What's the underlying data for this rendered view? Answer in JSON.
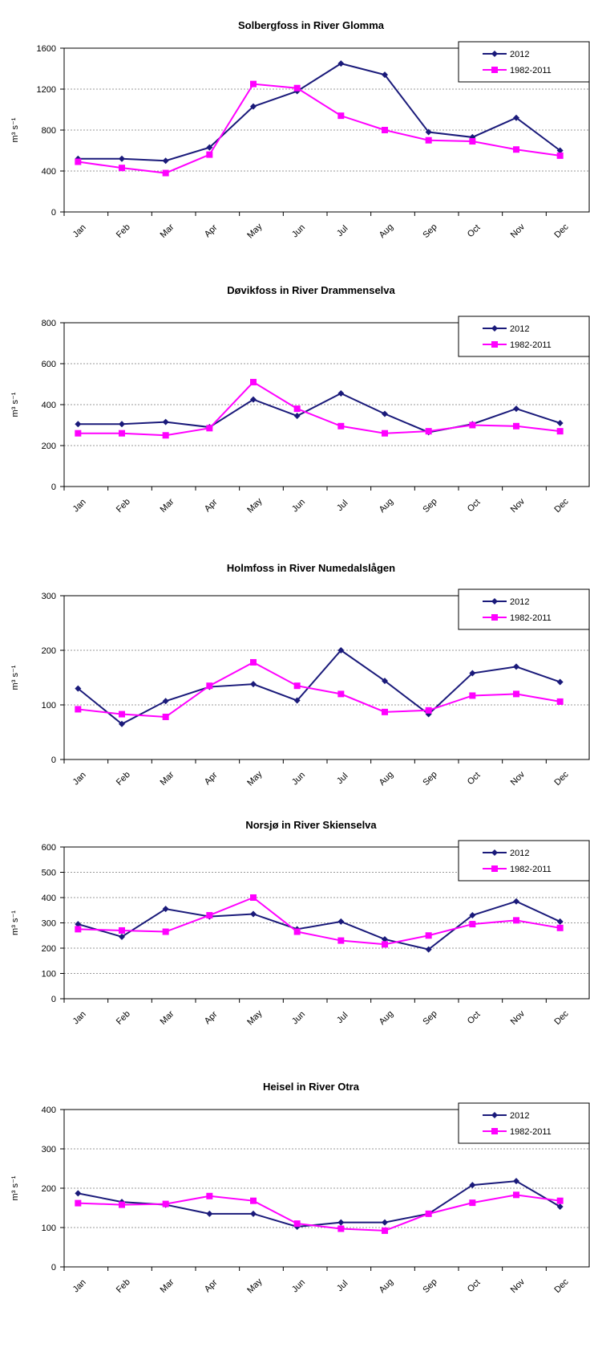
{
  "chart_data": [
    {
      "type": "line",
      "title": "Solbergfoss in River Glomma",
      "ylabel": "m³ s⁻¹",
      "categories": [
        "Jan",
        "Feb",
        "Mar",
        "Apr",
        "May",
        "Jun",
        "Jul",
        "Aug",
        "Sep",
        "Oct",
        "Nov",
        "Dec"
      ],
      "ylim": [
        0,
        1600
      ],
      "yticks": [
        0,
        400,
        800,
        1200,
        1600
      ],
      "legend_position": "top-right",
      "grid": true,
      "series": [
        {
          "name": "2012",
          "color": "#1a1a7a",
          "marker": "diamond",
          "values": [
            520,
            520,
            500,
            630,
            1030,
            1180,
            1450,
            1340,
            780,
            730,
            920,
            600
          ]
        },
        {
          "name": "1982-2011",
          "color": "#ff00ff",
          "marker": "square",
          "values": [
            490,
            430,
            380,
            560,
            1250,
            1210,
            940,
            800,
            700,
            690,
            610,
            550
          ]
        }
      ]
    },
    {
      "type": "line",
      "title": "Døvikfoss in River Drammenselva",
      "ylabel": "m³ s⁻¹",
      "categories": [
        "Jan",
        "Feb",
        "Mar",
        "Apr",
        "May",
        "Jun",
        "Jul",
        "Aug",
        "Sep",
        "Oct",
        "Nov",
        "Dec"
      ],
      "ylim": [
        0,
        800
      ],
      "yticks": [
        0,
        200,
        400,
        600,
        800
      ],
      "legend_position": "top-right",
      "grid": true,
      "series": [
        {
          "name": "2012",
          "color": "#1a1a7a",
          "marker": "diamond",
          "values": [
            305,
            305,
            315,
            290,
            425,
            345,
            455,
            355,
            265,
            305,
            380,
            310
          ]
        },
        {
          "name": "1982-2011",
          "color": "#ff00ff",
          "marker": "square",
          "values": [
            260,
            260,
            250,
            285,
            510,
            380,
            295,
            260,
            270,
            300,
            295,
            270
          ]
        }
      ]
    },
    {
      "type": "line",
      "title": "Holmfoss in River Numedalslågen",
      "ylabel": "m³ s⁻¹",
      "categories": [
        "Jan",
        "Feb",
        "Mar",
        "Apr",
        "May",
        "Jun",
        "Jul",
        "Aug",
        "Sep",
        "Oct",
        "Nov",
        "Dec"
      ],
      "ylim": [
        0,
        300
      ],
      "yticks": [
        0,
        100,
        200,
        300
      ],
      "legend_position": "top-right",
      "grid": true,
      "series": [
        {
          "name": "2012",
          "color": "#1a1a7a",
          "marker": "diamond",
          "values": [
            130,
            65,
            107,
            133,
            138,
            108,
            200,
            144,
            83,
            158,
            170,
            142
          ]
        },
        {
          "name": "1982-2011",
          "color": "#ff00ff",
          "marker": "square",
          "values": [
            92,
            83,
            78,
            135,
            178,
            135,
            120,
            87,
            90,
            117,
            120,
            106
          ]
        }
      ]
    },
    {
      "type": "line",
      "title": "Norsjø in River Skienselva",
      "ylabel": "m³ s⁻¹",
      "categories": [
        "Jan",
        "Feb",
        "Mar",
        "Apr",
        "May",
        "Jun",
        "Jul",
        "Aug",
        "Sep",
        "Oct",
        "Nov",
        "Dec"
      ],
      "ylim": [
        0,
        600
      ],
      "yticks": [
        0,
        100,
        200,
        300,
        400,
        500,
        600
      ],
      "legend_position": "top-right",
      "grid": true,
      "series": [
        {
          "name": "2012",
          "color": "#1a1a7a",
          "marker": "diamond",
          "values": [
            295,
            245,
            355,
            325,
            335,
            275,
            305,
            235,
            195,
            330,
            385,
            305
          ]
        },
        {
          "name": "1982-2011",
          "color": "#ff00ff",
          "marker": "square",
          "values": [
            275,
            270,
            265,
            330,
            400,
            265,
            230,
            215,
            250,
            295,
            310,
            280
          ]
        }
      ]
    },
    {
      "type": "line",
      "title": "Heisel in River Otra",
      "ylabel": "m³ s⁻¹",
      "categories": [
        "Jan",
        "Feb",
        "Mar",
        "Apr",
        "May",
        "Jun",
        "Jul",
        "Aug",
        "Sep",
        "Oct",
        "Nov",
        "Dec"
      ],
      "ylim": [
        0,
        400
      ],
      "yticks": [
        0,
        100,
        200,
        300,
        400
      ],
      "legend_position": "top-right",
      "grid": true,
      "series": [
        {
          "name": "2012",
          "color": "#1a1a7a",
          "marker": "diamond",
          "values": [
            187,
            165,
            158,
            135,
            135,
            102,
            113,
            113,
            135,
            208,
            218,
            153
          ]
        },
        {
          "name": "1982-2011",
          "color": "#ff00ff",
          "marker": "square",
          "values": [
            162,
            158,
            160,
            180,
            168,
            110,
            97,
            92,
            135,
            163,
            183,
            168
          ]
        }
      ]
    }
  ]
}
